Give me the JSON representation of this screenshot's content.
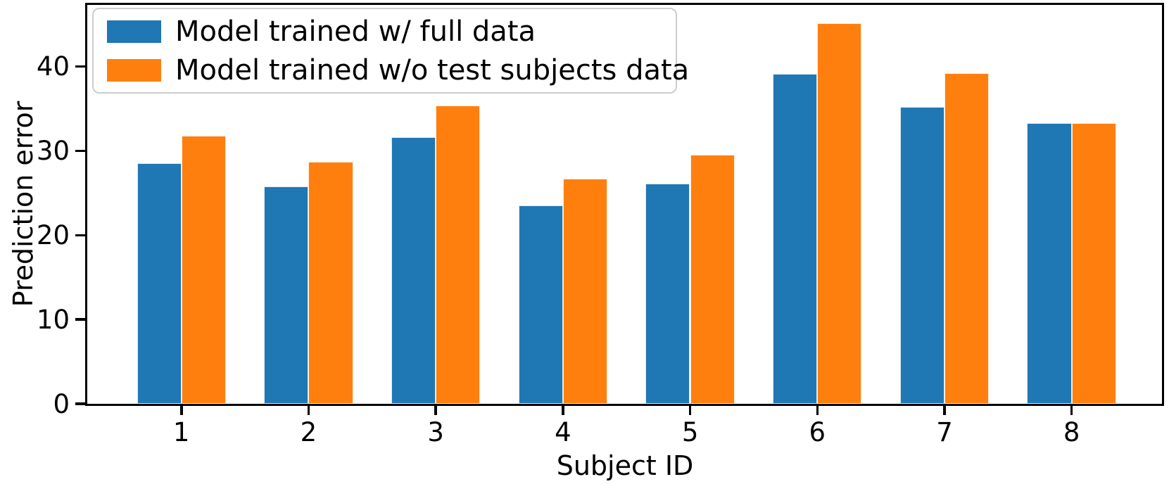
{
  "chart_data": {
    "type": "bar",
    "title": "",
    "xlabel": "Subject ID",
    "ylabel": "Prediction error",
    "categories": [
      "1",
      "2",
      "3",
      "4",
      "5",
      "6",
      "7",
      "8"
    ],
    "series": [
      {
        "name": "Model trained w/ full data",
        "color": "#1f77b4",
        "values": [
          28.5,
          25.8,
          31.6,
          23.5,
          26.1,
          39.1,
          35.2,
          33.3
        ]
      },
      {
        "name": "Model trained w/o test subjects data",
        "color": "#ff7f0e",
        "values": [
          31.8,
          28.7,
          35.4,
          26.7,
          29.5,
          45.1,
          39.2,
          33.3
        ]
      }
    ],
    "y_ticks": [
      "0",
      "10",
      "20",
      "30",
      "40"
    ],
    "y_tick_values": [
      0,
      10,
      20,
      30,
      40
    ],
    "ylim": [
      0,
      47.3
    ],
    "xlim": [
      0.26,
      8.71
    ],
    "bar_width": 0.35,
    "grid": false,
    "legend_position": "upper left",
    "spine_color": "#000000",
    "background_color": "#ffffff"
  }
}
